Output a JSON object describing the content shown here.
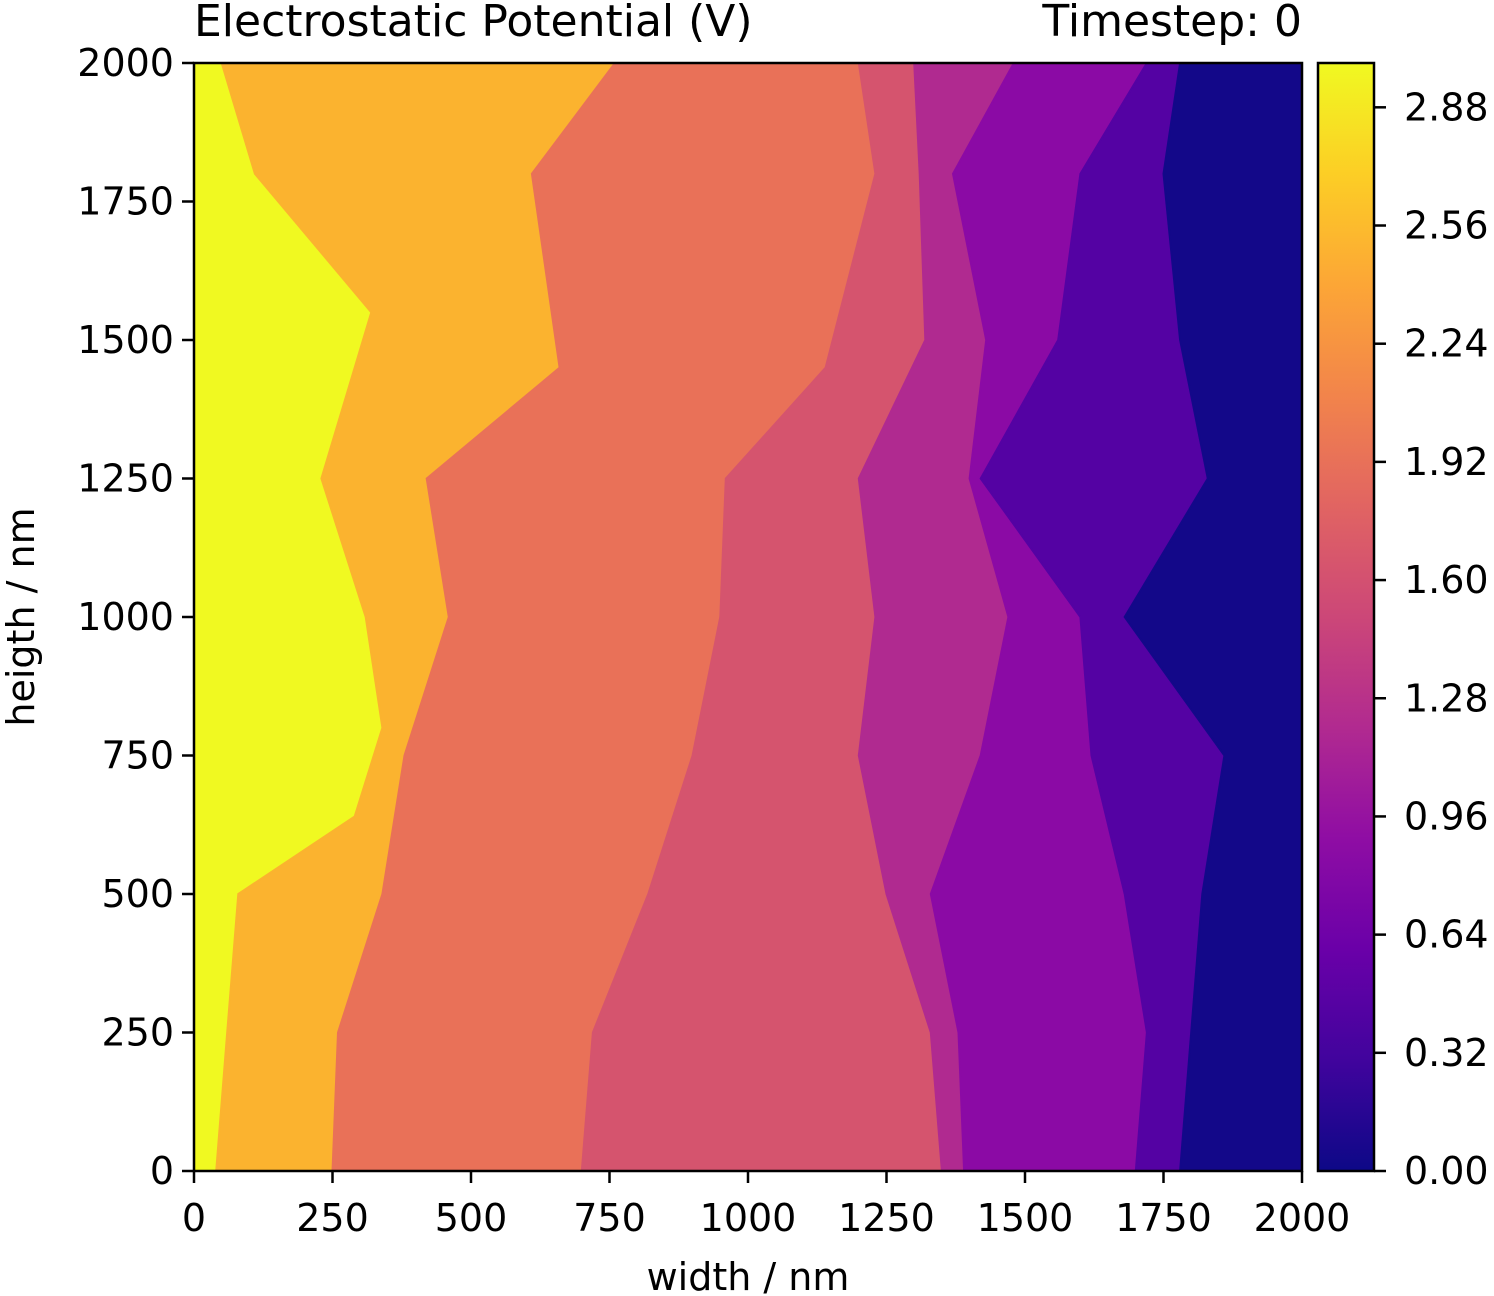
{
  "chart_data": {
    "type": "heatmap",
    "title": "Electrostatic Potential (V)",
    "subtitle": "Timestep: 0",
    "xlabel": "width / nm",
    "ylabel": "heigth / nm",
    "xlim": [
      0,
      2000
    ],
    "ylim": [
      0,
      2000
    ],
    "x_ticks": [
      "0",
      "250",
      "500",
      "750",
      "1000",
      "1250",
      "1500",
      "1750",
      "2000"
    ],
    "y_ticks": [
      "0",
      "250",
      "500",
      "750",
      "1000",
      "1250",
      "1500",
      "1750",
      "2000"
    ],
    "colorbar": {
      "range": [
        0,
        3.0
      ],
      "ticks": [
        "0.00",
        "0.32",
        "0.64",
        "0.96",
        "1.28",
        "1.60",
        "1.92",
        "2.24",
        "2.56",
        "2.88"
      ],
      "colormap": "plasma"
    },
    "grid": false,
    "regions": [
      {
        "value": 2.96,
        "color": "#f0f921",
        "points": [
          [
            0,
            0
          ],
          [
            40,
            0
          ],
          [
            60,
            250
          ],
          [
            80,
            500
          ],
          [
            290,
            640
          ],
          [
            340,
            800
          ],
          [
            310,
            1000
          ],
          [
            230,
            1250
          ],
          [
            320,
            1550
          ],
          [
            110,
            1800
          ],
          [
            50,
            2000
          ],
          [
            0,
            2000
          ]
        ]
      },
      {
        "value": 2.55,
        "color": "#fbb32f",
        "points": [
          [
            40,
            0
          ],
          [
            250,
            0
          ],
          [
            260,
            250
          ],
          [
            340,
            500
          ],
          [
            380,
            750
          ],
          [
            460,
            1000
          ],
          [
            420,
            1250
          ],
          [
            660,
            1450
          ],
          [
            610,
            1800
          ],
          [
            760,
            2000
          ],
          [
            50,
            2000
          ],
          [
            110,
            1800
          ],
          [
            320,
            1550
          ],
          [
            230,
            1250
          ],
          [
            310,
            1000
          ],
          [
            340,
            800
          ],
          [
            290,
            640
          ],
          [
            80,
            500
          ],
          [
            60,
            250
          ]
        ]
      },
      {
        "value": 2.24,
        "color": "#e97158",
        "points": [
          [
            250,
            0
          ],
          [
            700,
            0
          ],
          [
            720,
            250
          ],
          [
            820,
            500
          ],
          [
            900,
            750
          ],
          [
            950,
            1000
          ],
          [
            960,
            1250
          ],
          [
            1140,
            1450
          ],
          [
            1230,
            1800
          ],
          [
            1200,
            2000
          ],
          [
            760,
            2000
          ],
          [
            610,
            1800
          ],
          [
            660,
            1450
          ],
          [
            420,
            1250
          ],
          [
            460,
            1000
          ],
          [
            380,
            750
          ],
          [
            340,
            500
          ],
          [
            260,
            250
          ]
        ]
      },
      {
        "value": 1.92,
        "color": "#d5546e",
        "points": [
          [
            700,
            0
          ],
          [
            1350,
            0
          ],
          [
            1330,
            250
          ],
          [
            1250,
            500
          ],
          [
            1200,
            750
          ],
          [
            1230,
            1000
          ],
          [
            1200,
            1250
          ],
          [
            1320,
            1500
          ],
          [
            1310,
            1800
          ],
          [
            1300,
            2000
          ],
          [
            1200,
            2000
          ],
          [
            1230,
            1800
          ],
          [
            1140,
            1450
          ],
          [
            960,
            1250
          ],
          [
            950,
            1000
          ],
          [
            900,
            750
          ],
          [
            820,
            500
          ],
          [
            720,
            250
          ]
        ]
      },
      {
        "value": 1.28,
        "color": "#b02a90",
        "points": [
          [
            1350,
            0
          ],
          [
            1390,
            0
          ],
          [
            1380,
            250
          ],
          [
            1330,
            500
          ],
          [
            1420,
            750
          ],
          [
            1470,
            1000
          ],
          [
            1400,
            1250
          ],
          [
            1430,
            1500
          ],
          [
            1370,
            1800
          ],
          [
            1480,
            2000
          ],
          [
            1300,
            2000
          ],
          [
            1310,
            1800
          ],
          [
            1320,
            1500
          ],
          [
            1200,
            1250
          ],
          [
            1230,
            1000
          ],
          [
            1200,
            750
          ],
          [
            1250,
            500
          ],
          [
            1330,
            250
          ]
        ]
      },
      {
        "value": 0.8,
        "color": "#8b0aa5",
        "points": [
          [
            1390,
            0
          ],
          [
            1700,
            0
          ],
          [
            1720,
            250
          ],
          [
            1680,
            500
          ],
          [
            1620,
            750
          ],
          [
            1600,
            1000
          ],
          [
            1420,
            1250
          ],
          [
            1560,
            1500
          ],
          [
            1600,
            1800
          ],
          [
            1720,
            2000
          ],
          [
            1480,
            2000
          ],
          [
            1370,
            1800
          ],
          [
            1430,
            1500
          ],
          [
            1400,
            1250
          ],
          [
            1470,
            1000
          ],
          [
            1420,
            750
          ],
          [
            1330,
            500
          ],
          [
            1380,
            250
          ]
        ]
      },
      {
        "value": 0.4,
        "color": "#5402a3",
        "points": [
          [
            1700,
            0
          ],
          [
            1780,
            0
          ],
          [
            1800,
            250
          ],
          [
            1820,
            500
          ],
          [
            1860,
            750
          ],
          [
            1680,
            1000
          ],
          [
            1830,
            1250
          ],
          [
            1780,
            1500
          ],
          [
            1750,
            1800
          ],
          [
            1780,
            2000
          ],
          [
            1720,
            2000
          ],
          [
            1600,
            1800
          ],
          [
            1560,
            1500
          ],
          [
            1420,
            1250
          ],
          [
            1600,
            1000
          ],
          [
            1620,
            750
          ],
          [
            1680,
            500
          ],
          [
            1720,
            250
          ]
        ]
      },
      {
        "value": 0.08,
        "color": "#130889",
        "points": [
          [
            1780,
            0
          ],
          [
            2000,
            0
          ],
          [
            2000,
            2000
          ],
          [
            1780,
            2000
          ],
          [
            1750,
            1800
          ],
          [
            1780,
            1500
          ],
          [
            1830,
            1250
          ],
          [
            1680,
            1000
          ],
          [
            1860,
            750
          ],
          [
            1820,
            500
          ],
          [
            1800,
            250
          ]
        ]
      }
    ]
  }
}
